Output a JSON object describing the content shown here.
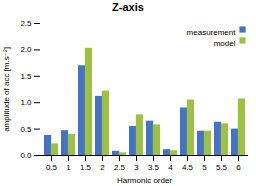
{
  "chart_data": {
    "type": "bar",
    "title": "Z-axis",
    "xlabel": "Harmonic order",
    "ylabel": "amplitude of acc [m.s⁻²]",
    "categories": [
      "0.5",
      "1",
      "1.5",
      "2",
      "2.5",
      "3",
      "3.5",
      "4",
      "4.5",
      "5",
      "5.5",
      "6"
    ],
    "series": [
      {
        "name": "measurement",
        "color": "#4472c4",
        "values": [
          0.38,
          0.47,
          1.7,
          1.12,
          0.08,
          0.55,
          0.65,
          0.11,
          0.9,
          0.46,
          0.63,
          0.5
        ]
      },
      {
        "name": "model",
        "color": "#9dc243",
        "values": [
          0.22,
          0.4,
          2.03,
          1.22,
          0.05,
          0.77,
          0.58,
          0.09,
          1.05,
          0.46,
          0.6,
          1.07
        ]
      }
    ],
    "ylim": [
      0,
      2.5
    ],
    "yticks": [
      {
        "value": 0,
        "label": "0.0"
      },
      0.5,
      {
        "value": 1.0,
        "label": "1.0"
      },
      1.5,
      {
        "value": 2.0,
        "label": "2.0"
      },
      2.5
    ],
    "grid": false,
    "legend": "upper right"
  }
}
